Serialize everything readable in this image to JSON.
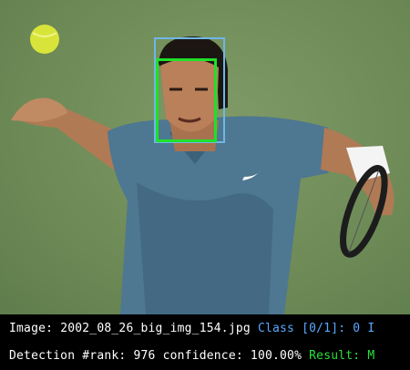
{
  "info": {
    "image_label": "Image:",
    "image_name": "2002_08_26_big_img_154.jpg",
    "class_text": "Class [0/1]: 0 I",
    "detection_label": "Detection #rank:",
    "rank": "976",
    "confidence_label": "confidence:",
    "confidence": "100.00%",
    "result_label": "Result: M"
  },
  "colors": {
    "gt_box": "#6fb6e6",
    "detection_box": "#1fe02a",
    "class_text": "#5aa8ff",
    "result_text": "#27e03a"
  }
}
